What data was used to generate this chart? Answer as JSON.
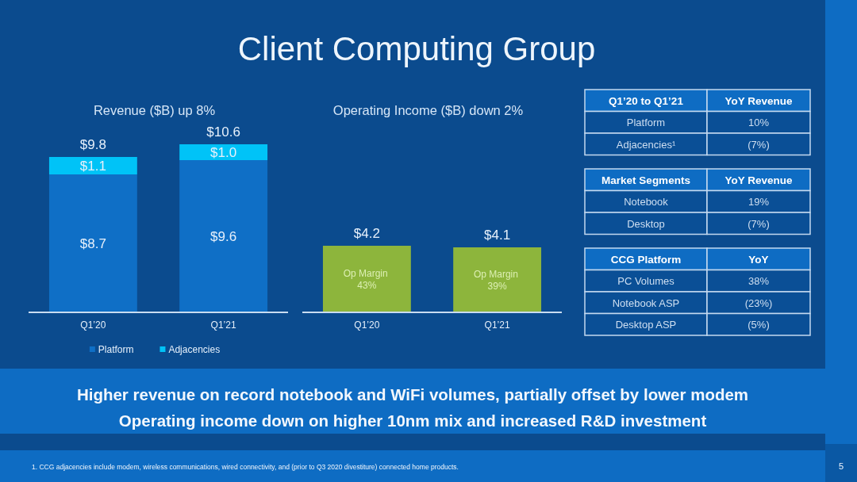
{
  "chart_data": [
    {
      "type": "other",
      "title": "Client Computing Group"
    },
    {
      "type": "bar",
      "title": "Revenue ($B) up 8%",
      "categories": [
        "Q1’20",
        "Q1’21"
      ],
      "stacked": true,
      "series": [
        {
          "name": "Platform",
          "color": "#0f6fc6",
          "values": [
            8.7,
            9.6
          ],
          "value_labels": [
            "$8.7",
            "$9.6"
          ]
        },
        {
          "name": "Adjacencies",
          "color": "#00c3f7",
          "values": [
            1.1,
            1.0
          ],
          "value_labels": [
            "$1.1",
            "$1.0"
          ]
        }
      ],
      "totals": [
        "$9.8",
        "$10.6"
      ],
      "legend": "bottom"
    },
    {
      "type": "bar",
      "title": "Operating Income ($B) down 2%",
      "categories": [
        "Q1’20",
        "Q1’21"
      ],
      "values": [
        4.2,
        4.1
      ],
      "color": "#8db53c",
      "value_labels": [
        "$4.2",
        "$4.1"
      ],
      "annotations": [
        "Op Margin 43%",
        "Op Margin 39%"
      ]
    },
    {
      "type": "other",
      "annotations": [
        "Q1’20 to Q1’21",
        "YoY Revenue",
        "Platform",
        "10%",
        "Adjacencies¹",
        "(7%)"
      ]
    },
    {
      "type": "other",
      "annotations": [
        "Market Segments",
        "YoY Revenue",
        "Notebook",
        "19%",
        "Desktop",
        "(7%)"
      ]
    },
    {
      "type": "other",
      "annotations": [
        "CCG Platform",
        "YoY",
        "PC Volumes",
        "38%",
        "Notebook ASP",
        "(23%)",
        "Desktop ASP",
        "(5%)"
      ]
    },
    {
      "type": "other",
      "annotations": [
        "Higher revenue on record notebook and WiFi volumes, partially offset by lower modem",
        "Operating income down on higher 10nm mix and increased R&D investment",
        "1. CCG adjacencies include modem, wireless communications, wired connectivity, and (prior to Q3 2020 divestiture) connected home products.",
        "5"
      ]
    }
  ]
}
